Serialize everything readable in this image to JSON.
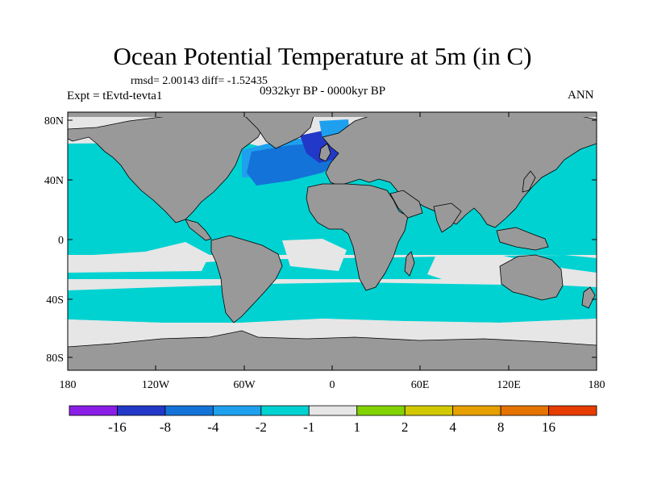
{
  "title": "Ocean Potential Temperature at 5m (in C)",
  "stats": "rmsd= 2.00143 diff= -1.52435",
  "experiment": "Expt = tEvtd-tevta1",
  "period": "0932kyr BP - 0000kyr BP",
  "season": "ANN",
  "colors": {
    "land": "#999999",
    "near_zero": "#e6e6e6",
    "cyan": "#00d2d2",
    "light_blue": "#1ea0ee",
    "mid_blue": "#1473d8",
    "dark_blue": "#2238c8",
    "purple": "#8a1ee6"
  },
  "map": {
    "x_ticks": [
      "180",
      "120W",
      "60W",
      "0",
      "60E",
      "120E",
      "180"
    ],
    "y_ticks": [
      "80N",
      "40N",
      "0",
      "40S",
      "80S"
    ]
  },
  "colorbar": {
    "labels": [
      "-16",
      "-8",
      "-4",
      "-2",
      "-1",
      "1",
      "2",
      "4",
      "8",
      "16"
    ],
    "colors": [
      "#8a1ee6",
      "#2238c8",
      "#1473d8",
      "#1ea0ee",
      "#00d2d2",
      "#e6e6e6",
      "#82d200",
      "#d2c800",
      "#e6a000",
      "#e67300",
      "#e63c00"
    ]
  }
}
